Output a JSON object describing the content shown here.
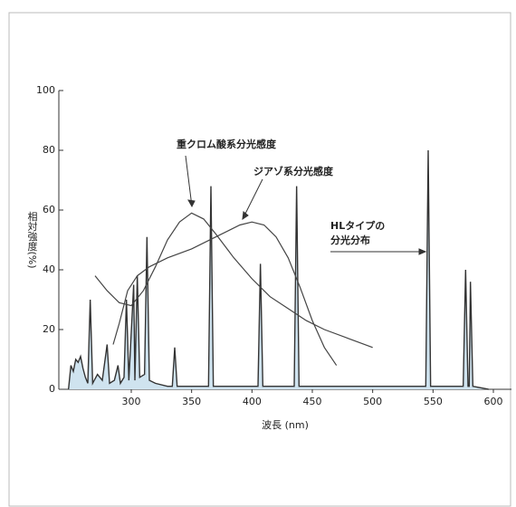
{
  "chart_data": {
    "type": "line",
    "xlabel": "波長 (nm)",
    "ylabel": "相対強度(%)",
    "xlim": [
      240,
      615
    ],
    "ylim": [
      0,
      100
    ],
    "xticks": [
      300,
      350,
      400,
      450,
      500,
      550,
      600
    ],
    "yticks": [
      0,
      20,
      40,
      60,
      80,
      100
    ],
    "annotations": [
      "重クロム酸系分光感度",
      "ジアゾ系分光感度",
      "HLタイプの",
      "分光分布"
    ],
    "series": [
      {
        "name": "HLタイプの分光分布",
        "color": "#333333",
        "fill": "#cfe3ef",
        "x": [
          248,
          250,
          252,
          254,
          256,
          258,
          260,
          262,
          264,
          266,
          268,
          272,
          276,
          280,
          282,
          286,
          289,
          291,
          294,
          296,
          298,
          302,
          303,
          305,
          307,
          311,
          313,
          315,
          320,
          330,
          334,
          336,
          338,
          364,
          366,
          368,
          405,
          407,
          409,
          435,
          437,
          439,
          544,
          546,
          548,
          575,
          577,
          579,
          580,
          581,
          583,
          596
        ],
        "values": [
          0,
          8,
          6,
          10,
          9,
          11,
          7,
          4,
          2,
          30,
          2,
          5,
          3,
          15,
          2,
          3,
          8,
          2,
          4,
          30,
          3,
          35,
          3,
          38,
          4,
          5,
          51,
          3,
          2,
          1,
          1,
          14,
          1,
          1,
          68,
          1,
          1,
          42,
          1,
          1,
          68,
          1,
          1,
          80,
          1,
          1,
          40,
          1,
          1,
          36,
          1,
          0
        ]
      },
      {
        "name": "重クロム酸系分光感度",
        "color": "#444444",
        "x": [
          270,
          280,
          290,
          300,
          310,
          320,
          330,
          340,
          350,
          360,
          370,
          385,
          400,
          415,
          430,
          445,
          460,
          480,
          500
        ],
        "values": [
          38,
          33,
          29,
          28,
          33,
          41,
          50,
          56,
          59,
          57,
          52,
          44,
          37,
          31,
          27,
          23,
          20,
          17,
          14
        ]
      },
      {
        "name": "ジアゾ系分光感度",
        "color": "#444444",
        "x": [
          285,
          290,
          297,
          305,
          315,
          330,
          350,
          370,
          390,
          400,
          410,
          420,
          430,
          440,
          450,
          460,
          470
        ],
        "values": [
          15,
          22,
          33,
          38,
          41,
          44,
          47,
          51,
          55,
          56,
          55,
          51,
          44,
          34,
          23,
          14,
          8
        ]
      }
    ]
  }
}
